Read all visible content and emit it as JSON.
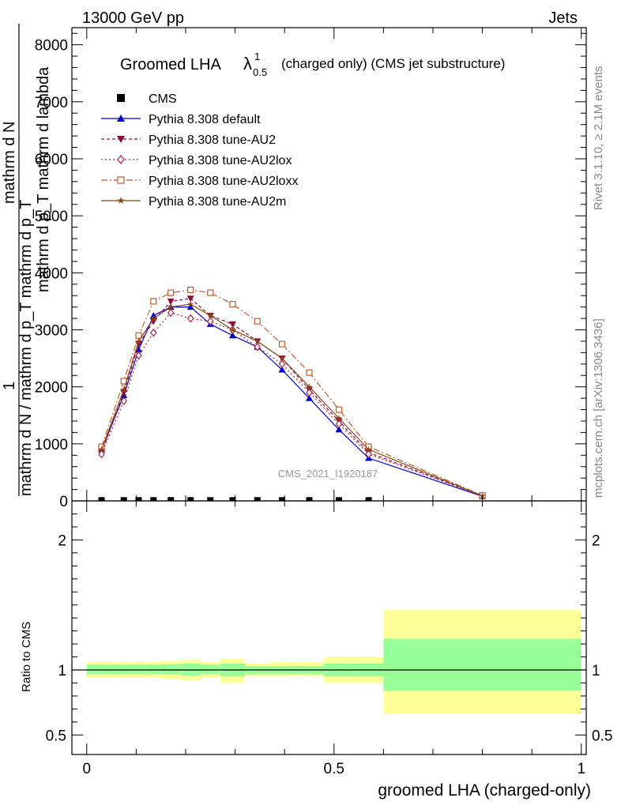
{
  "header": {
    "energy": "13000 GeV pp",
    "category": "Jets"
  },
  "side_labels": {
    "rivet": "Rivet 3.1.10, ≥ 2.1M events",
    "mcplots": "mcplots.cern.ch [arXiv:1306.3436]"
  },
  "title": {
    "main": "Groomed LHA",
    "lambda": "λ",
    "sup": "1",
    "sub": "0.5",
    "rest": "(charged only) (CMS jet substructure)"
  },
  "watermark": "CMS_2021_I1920187",
  "chart_data": [
    {
      "type": "line",
      "ylabel_parts": {
        "one": "1",
        "ylabel_denominator": "mathrm d N / mathrm d p_T mathrm d p_T mathrm d lambda",
        "numerator": "mathrm d^2N"
      },
      "ylabel_numerator": "mathrm d N",
      "ylabel_numerator_right": "mathrm d p_T mathrm d lambda",
      "ylabel_denominator": "mathrm d N / mathrm d p_T mathrm d p_T",
      "xlim": [
        -0.03,
        1.01
      ],
      "ylim": [
        0,
        8300
      ],
      "yticks": [
        {
          "v": 0,
          "label": "0"
        },
        {
          "v": 1000,
          "label": "1000"
        },
        {
          "v": 2000,
          "label": "2000"
        },
        {
          "v": 3000,
          "label": "3000"
        },
        {
          "v": 4000,
          "label": "4000"
        },
        {
          "v": 5000,
          "label": "5000"
        },
        {
          "v": 6000,
          "label": "6000"
        },
        {
          "v": 7000,
          "label": "7000"
        },
        {
          "v": 8000,
          "label": "8000"
        }
      ],
      "x": [
        0.03,
        0.075,
        0.105,
        0.135,
        0.17,
        0.21,
        0.25,
        0.295,
        0.345,
        0.395,
        0.45,
        0.51,
        0.57,
        0.8
      ],
      "series": [
        {
          "name": "CMS",
          "color": "#000000",
          "marker": "square",
          "dash": "",
          "values": [
            10,
            10,
            10,
            10,
            10,
            10,
            10,
            10,
            10,
            10,
            10,
            10,
            10,
            null
          ]
        },
        {
          "name": "Pythia 8.308 default",
          "color": "#0000cc",
          "marker": "triangle-up",
          "dash": "",
          "values": [
            900,
            1850,
            2650,
            3250,
            3400,
            3400,
            3100,
            2900,
            2700,
            2300,
            1800,
            1250,
            750,
            80
          ]
        },
        {
          "name": "Pythia 8.308 tune-AU2",
          "color": "#8b0a3a",
          "marker": "triangle-down",
          "dash": "4,3",
          "values": [
            850,
            1900,
            2750,
            3150,
            3500,
            3550,
            3250,
            3100,
            2800,
            2500,
            1950,
            1400,
            850,
            90
          ]
        },
        {
          "name": "Pythia 8.308 tune-AU2lox",
          "color": "#b0204a",
          "marker": "diamond-open",
          "dash": "2,3",
          "values": [
            820,
            1750,
            2550,
            2950,
            3300,
            3200,
            3150,
            3000,
            2700,
            2400,
            1900,
            1350,
            820,
            85
          ]
        },
        {
          "name": "Pythia 8.308 tune-AU2loxx",
          "color": "#c05a28",
          "marker": "square-open",
          "dash": "8,3,2,3",
          "values": [
            950,
            2100,
            2900,
            3500,
            3650,
            3700,
            3650,
            3450,
            3150,
            2750,
            2250,
            1600,
            950,
            95
          ]
        },
        {
          "name": "Pythia 8.308 tune-AU2m",
          "color": "#8b4513",
          "marker": "star",
          "dash": "",
          "values": [
            900,
            1950,
            2800,
            3200,
            3400,
            3450,
            3250,
            3000,
            2800,
            2500,
            2000,
            1450,
            900,
            88
          ]
        }
      ]
    },
    {
      "type": "area",
      "ylabel": "Ratio to CMS",
      "xlabel": "groomed LHA (charged-only)",
      "xlim": [
        -0.03,
        1.01
      ],
      "ylim": [
        0.35,
        2.3
      ],
      "xticks": [
        {
          "v": 0,
          "label": "0"
        },
        {
          "v": 0.5,
          "label": "0.5"
        },
        {
          "v": 1,
          "label": "1"
        }
      ],
      "yticks": [
        {
          "v": 0.5,
          "label": "0.5"
        },
        {
          "v": 1,
          "label": "1"
        },
        {
          "v": 2,
          "label": "2"
        }
      ],
      "bins": [
        {
          "lo": 0.0,
          "hi": 0.06,
          "inner": [
            0.97,
            1.04
          ],
          "outer": [
            0.94,
            1.06
          ]
        },
        {
          "lo": 0.06,
          "hi": 0.09,
          "inner": [
            0.97,
            1.04
          ],
          "outer": [
            0.94,
            1.06
          ]
        },
        {
          "lo": 0.09,
          "hi": 0.12,
          "inner": [
            0.97,
            1.04
          ],
          "outer": [
            0.94,
            1.06
          ]
        },
        {
          "lo": 0.12,
          "hi": 0.15,
          "inner": [
            0.97,
            1.04
          ],
          "outer": [
            0.94,
            1.06
          ]
        },
        {
          "lo": 0.15,
          "hi": 0.19,
          "inner": [
            0.965,
            1.045
          ],
          "outer": [
            0.93,
            1.07
          ]
        },
        {
          "lo": 0.19,
          "hi": 0.23,
          "inner": [
            0.955,
            1.05
          ],
          "outer": [
            0.92,
            1.08
          ]
        },
        {
          "lo": 0.23,
          "hi": 0.27,
          "inner": [
            0.97,
            1.04
          ],
          "outer": [
            0.94,
            1.06
          ]
        },
        {
          "lo": 0.27,
          "hi": 0.32,
          "inner": [
            0.95,
            1.05
          ],
          "outer": [
            0.9,
            1.09
          ]
        },
        {
          "lo": 0.32,
          "hi": 0.37,
          "inner": [
            0.97,
            1.03
          ],
          "outer": [
            0.95,
            1.05
          ]
        },
        {
          "lo": 0.37,
          "hi": 0.42,
          "inner": [
            0.97,
            1.03
          ],
          "outer": [
            0.95,
            1.06
          ]
        },
        {
          "lo": 0.42,
          "hi": 0.48,
          "inner": [
            0.97,
            1.03
          ],
          "outer": [
            0.95,
            1.06
          ]
        },
        {
          "lo": 0.48,
          "hi": 0.54,
          "inner": [
            0.95,
            1.05
          ],
          "outer": [
            0.9,
            1.1
          ]
        },
        {
          "lo": 0.54,
          "hi": 0.6,
          "inner": [
            0.95,
            1.05
          ],
          "outer": [
            0.9,
            1.1
          ]
        },
        {
          "lo": 0.6,
          "hi": 1.0,
          "inner": [
            0.84,
            1.24
          ],
          "outer": [
            0.66,
            1.46
          ]
        }
      ],
      "ref_line": 1,
      "inner_color": "#99ff99",
      "outer_color": "#ffff99"
    }
  ]
}
